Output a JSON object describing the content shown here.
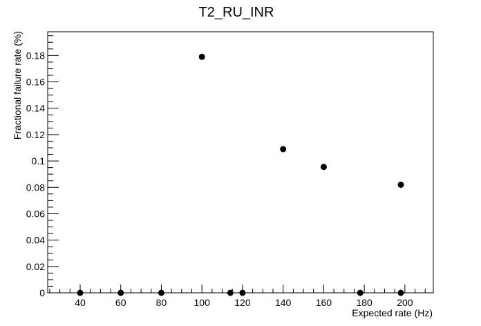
{
  "chart_data": {
    "type": "scatter",
    "title": "T2_RU_INR",
    "xlabel": "Expected rate (Hz)",
    "ylabel": "Fractional failure rate (%)",
    "xlim": [
      24,
      214
    ],
    "ylim": [
      0,
      0.198
    ],
    "x_ticks": [
      40,
      60,
      80,
      100,
      120,
      140,
      160,
      180,
      200
    ],
    "y_ticks": [
      0,
      0.02,
      0.04,
      0.06,
      0.08,
      0.1,
      0.12,
      0.14,
      0.16,
      0.18
    ],
    "x_tick_labels": [
      "40",
      "60",
      "80",
      "100",
      "120",
      "140",
      "160",
      "180",
      "200"
    ],
    "y_tick_labels": [
      "0",
      "0.02",
      "0.04",
      "0.06",
      "0.08",
      "0.1",
      "0.12",
      "0.14",
      "0.16",
      "0.18"
    ],
    "grid": false,
    "marker_color": "#000000",
    "points": [
      {
        "x": 40,
        "y": 0
      },
      {
        "x": 60,
        "y": 0
      },
      {
        "x": 80,
        "y": 0
      },
      {
        "x": 100,
        "y": 0.179
      },
      {
        "x": 114,
        "y": 0
      },
      {
        "x": 120,
        "y": 0
      },
      {
        "x": 140,
        "y": 0.109
      },
      {
        "x": 160,
        "y": 0.0955
      },
      {
        "x": 178,
        "y": 0
      },
      {
        "x": 198,
        "y": 0
      },
      {
        "x": 198,
        "y": 0.082
      }
    ]
  }
}
